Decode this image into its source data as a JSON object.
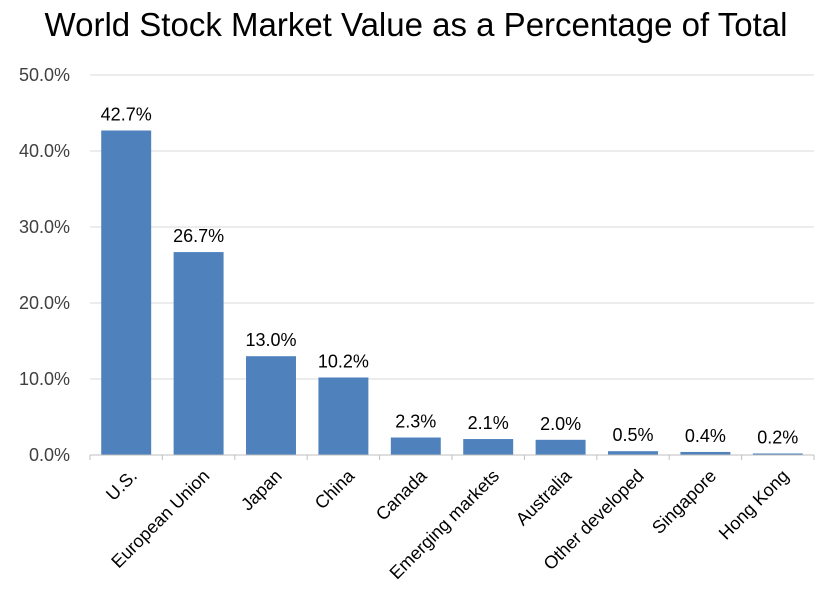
{
  "chart_data": {
    "type": "bar",
    "title": "World Stock Market Value as a Percentage of Total",
    "xlabel": "",
    "ylabel": "",
    "ylim": [
      0,
      50
    ],
    "yticks": [
      "0.0%",
      "10.0%",
      "20.0%",
      "30.0%",
      "40.0%",
      "50.0%"
    ],
    "grid": true,
    "categories": [
      "U.S.",
      "European Union",
      "Japan",
      "China",
      "Canada",
      "Emerging markets",
      "Australia",
      "Other developed",
      "Singapore",
      "Hong Kong"
    ],
    "values": [
      42.7,
      26.7,
      13.0,
      10.2,
      2.3,
      2.1,
      2.0,
      0.5,
      0.4,
      0.2
    ],
    "data_labels": [
      "42.7%",
      "26.7%",
      "13.0%",
      "10.2%",
      "2.3%",
      "2.1%",
      "2.0%",
      "0.5%",
      "0.4%",
      "0.2%"
    ],
    "colors": {
      "bar": "#4f81bd",
      "grid": "#d9d9d9",
      "axis": "#bfbfbf"
    }
  }
}
